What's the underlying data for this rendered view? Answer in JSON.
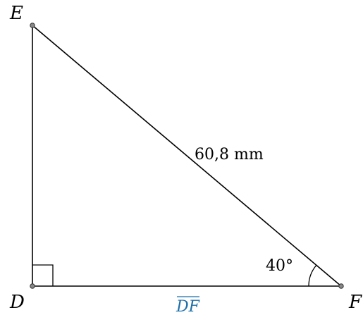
{
  "vertices": {
    "E": "E",
    "D": "D",
    "F": "F"
  },
  "hypotenuse_label": "60,8 mm",
  "angle_label": "40°",
  "segment_label": "DF",
  "colors": {
    "line": "#000000",
    "point": "#888888",
    "segment_label": "#1c6fa8"
  }
}
